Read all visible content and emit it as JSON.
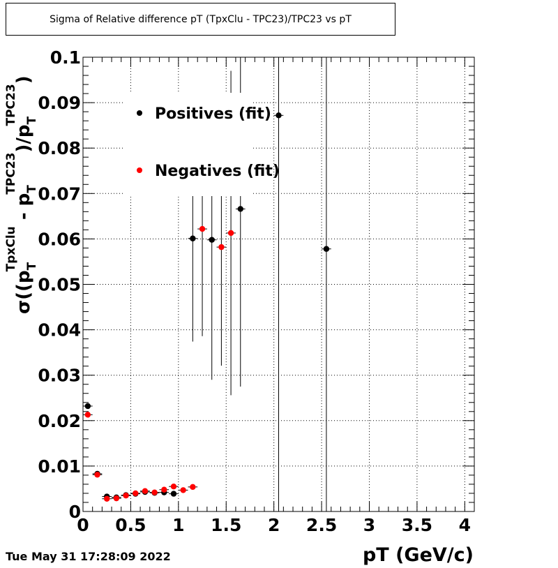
{
  "title": "Sigma of Relative difference pT (TpxClu - TPC23)/TPC23 vs pT",
  "timestamp": "Tue May 31 17:28:09 2022",
  "chart_data": {
    "type": "scatter",
    "title": "Sigma of Relative difference pT (TpxClu - TPC23)/TPC23 vs pT",
    "xlabel": "pT (GeV/c)",
    "ylabel": {
      "sigma": "σ((p",
      "sub1": "T",
      "sup1": "TpxClu",
      "minus": " - p",
      "sub2": "T",
      "sup2": "TPC23",
      "slash": ")/p",
      "sub3": "T",
      "sup3": "TPC23",
      "close": ")"
    },
    "xlim": [
      0,
      4.1
    ],
    "ylim": [
      0,
      0.1
    ],
    "x_ticks": [
      "0",
      "0.5",
      "1",
      "1.5",
      "2",
      "2.5",
      "3",
      "3.5",
      "4"
    ],
    "x_tick_values": [
      0,
      0.5,
      1,
      1.5,
      2,
      2.5,
      3,
      3.5,
      4
    ],
    "y_ticks": [
      "0",
      "0.01",
      "0.02",
      "0.03",
      "0.04",
      "0.05",
      "0.06",
      "0.07",
      "0.08",
      "0.09",
      "0.1"
    ],
    "y_tick_values": [
      0,
      0.01,
      0.02,
      0.03,
      0.04,
      0.05,
      0.06,
      0.07,
      0.08,
      0.09,
      0.1
    ],
    "grid": true,
    "legend_position": "top-left",
    "series": [
      {
        "name": "Positives (fit)",
        "color": "#000000",
        "points": [
          {
            "x": 0.05,
            "y": 0.0232,
            "xerr": 0.05,
            "yerr": 0.0004
          },
          {
            "x": 0.15,
            "y": 0.0083,
            "xerr": 0.05,
            "yerr": 0.0003
          },
          {
            "x": 0.25,
            "y": 0.0033,
            "xerr": 0.05,
            "yerr": 0.0002
          },
          {
            "x": 0.35,
            "y": 0.0031,
            "xerr": 0.05,
            "yerr": 0.0002
          },
          {
            "x": 0.45,
            "y": 0.0036,
            "xerr": 0.05,
            "yerr": 0.0002
          },
          {
            "x": 0.55,
            "y": 0.0039,
            "xerr": 0.05,
            "yerr": 0.0002
          },
          {
            "x": 0.65,
            "y": 0.0043,
            "xerr": 0.05,
            "yerr": 0.0002
          },
          {
            "x": 0.75,
            "y": 0.0041,
            "xerr": 0.05,
            "yerr": 0.0002
          },
          {
            "x": 0.85,
            "y": 0.0042,
            "xerr": 0.05,
            "yerr": 0.0002
          },
          {
            "x": 0.95,
            "y": 0.0039,
            "xerr": 0.05,
            "yerr": 0.0002
          },
          {
            "x": 1.15,
            "y": 0.0601,
            "xerr": 0.05,
            "yerr": 0.0227
          },
          {
            "x": 1.35,
            "y": 0.0598,
            "xerr": 0.05,
            "yerr": 0.0308
          },
          {
            "x": 1.65,
            "y": 0.0666,
            "xerr": 0.05,
            "yerr": 0.0391
          },
          {
            "x": 2.05,
            "y": 0.0872,
            "xerr": 0.05,
            "yerr": 0.1
          },
          {
            "x": 2.55,
            "y": 0.0578,
            "xerr": 0.05,
            "yerr": 0.1
          }
        ]
      },
      {
        "name": "Negatives (fit)",
        "color": "#ff0000",
        "points": [
          {
            "x": 0.05,
            "y": 0.0213,
            "xerr": 0.05,
            "yerr": 0.0004
          },
          {
            "x": 0.15,
            "y": 0.0081,
            "xerr": 0.05,
            "yerr": 0.0003
          },
          {
            "x": 0.25,
            "y": 0.0028,
            "xerr": 0.05,
            "yerr": 0.0002
          },
          {
            "x": 0.35,
            "y": 0.0029,
            "xerr": 0.05,
            "yerr": 0.0002
          },
          {
            "x": 0.45,
            "y": 0.0035,
            "xerr": 0.05,
            "yerr": 0.0002
          },
          {
            "x": 0.55,
            "y": 0.004,
            "xerr": 0.05,
            "yerr": 0.0002
          },
          {
            "x": 0.65,
            "y": 0.0045,
            "xerr": 0.05,
            "yerr": 0.0002
          },
          {
            "x": 0.75,
            "y": 0.0042,
            "xerr": 0.05,
            "yerr": 0.0002
          },
          {
            "x": 0.85,
            "y": 0.0048,
            "xerr": 0.05,
            "yerr": 0.0002
          },
          {
            "x": 0.95,
            "y": 0.0055,
            "xerr": 0.05,
            "yerr": 0.0002
          },
          {
            "x": 1.05,
            "y": 0.0047,
            "xerr": 0.05,
            "yerr": 0.0002
          },
          {
            "x": 1.15,
            "y": 0.0054,
            "xerr": 0.05,
            "yerr": 0.0002
          },
          {
            "x": 1.25,
            "y": 0.0622,
            "xerr": 0.05,
            "yerr": 0.0236
          },
          {
            "x": 1.45,
            "y": 0.0582,
            "xerr": 0.05,
            "yerr": 0.0261
          },
          {
            "x": 1.55,
            "y": 0.0613,
            "xerr": 0.05,
            "yerr": 0.0357
          }
        ]
      }
    ]
  }
}
